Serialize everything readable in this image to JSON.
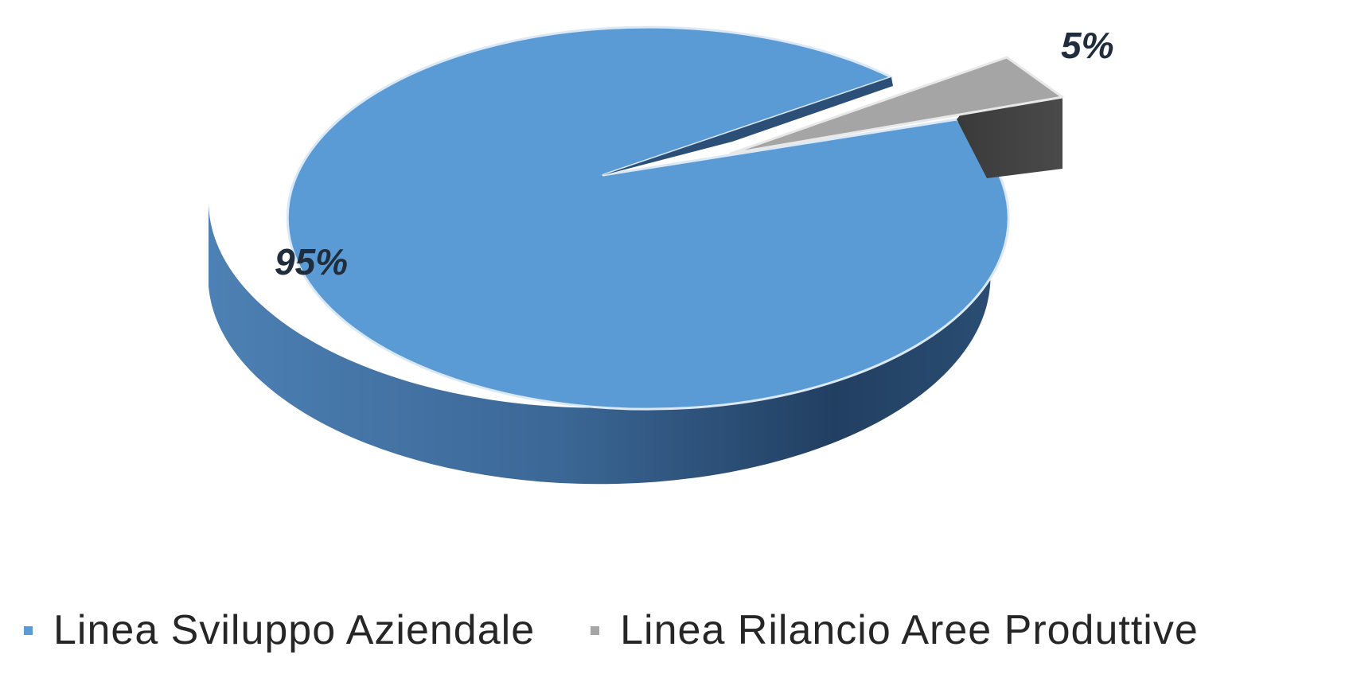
{
  "chart_data": {
    "type": "pie",
    "title": "",
    "slices": [
      {
        "name": "Linea Sviluppo Aziendale",
        "value": 95,
        "label": "95%",
        "color": "#5b9bd5"
      },
      {
        "name": "Linea Rilancio Aree Produttive",
        "value": 5,
        "label": "5%",
        "color": "#a5a5a5"
      }
    ],
    "legend_placement": "bottom",
    "style": "3d-exploded"
  }
}
